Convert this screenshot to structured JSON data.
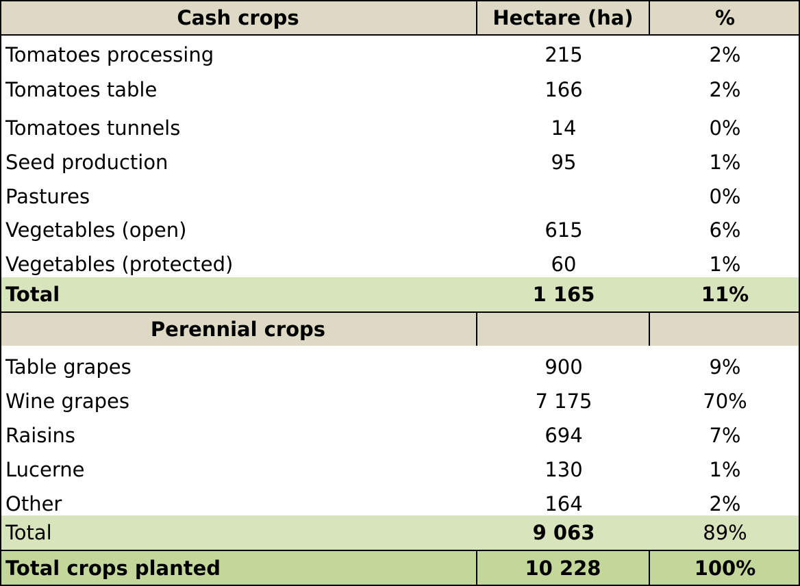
{
  "header": {
    "label": "Cash crops",
    "hectare": "Hectare (ha)",
    "pct": "%"
  },
  "cash_rows": [
    {
      "name": "Tomatoes processing",
      "ha": "215",
      "pct": "2%"
    },
    {
      "name": "Tomatoes table",
      "ha": "166",
      "pct": "2%"
    },
    {
      "name": "Tomatoes tunnels",
      "ha": "14",
      "pct": "0%"
    },
    {
      "name": "Seed production",
      "ha": "95",
      "pct": "1%"
    },
    {
      "name": "Pastures",
      "ha": "",
      "pct": "0%"
    },
    {
      "name": "Vegetables (open)",
      "ha": "615",
      "pct": "6%"
    },
    {
      "name": "Vegetables (protected)",
      "ha": "60",
      "pct": "1%"
    }
  ],
  "cash_total": {
    "name": "Total",
    "ha": "1 165",
    "pct": "11%"
  },
  "perennial_header": {
    "label": "Perennial crops"
  },
  "perennial_rows": [
    {
      "name": "Table grapes",
      "ha": "900",
      "pct": "9%"
    },
    {
      "name": "Wine grapes",
      "ha": "7 175",
      "pct": "70%"
    },
    {
      "name": "Raisins",
      "ha": "694",
      "pct": "7%"
    },
    {
      "name": "Lucerne",
      "ha": "130",
      "pct": "1%"
    },
    {
      "name": "Other",
      "ha": "164",
      "pct": "2%"
    }
  ],
  "perennial_total": {
    "name": "Total",
    "ha": "9 063",
    "pct": "89%"
  },
  "grand_total": {
    "name": "Total crops planted",
    "ha": "10 228",
    "pct": "100%"
  },
  "colors": {
    "header_bg": "#ddd9c4",
    "total_bg": "#d8e4bc",
    "grand_bg": "#c4d79b"
  }
}
